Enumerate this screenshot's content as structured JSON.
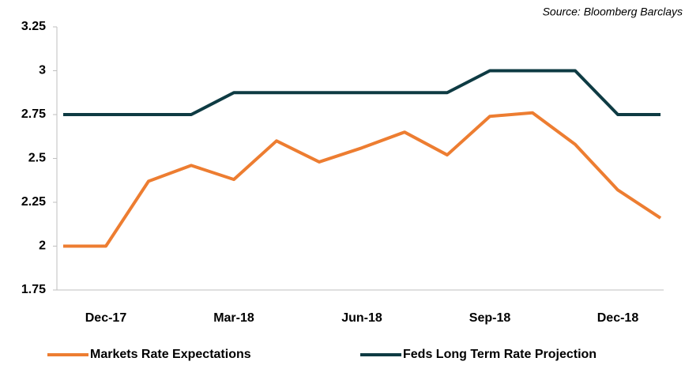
{
  "chart_data": {
    "type": "line",
    "source": "Source: Bloomberg Barclays",
    "categories": [
      null,
      "Dec-17",
      null,
      null,
      "Mar-18",
      null,
      null,
      "Jun-18",
      null,
      null,
      "Sep-18",
      null,
      null,
      "Dec-18",
      null
    ],
    "series": [
      {
        "name": "Markets Rate Expectations",
        "color": "#ed7d31",
        "values": [
          2.0,
          2.0,
          2.37,
          2.46,
          2.38,
          2.6,
          2.48,
          2.56,
          2.65,
          2.52,
          2.74,
          2.76,
          2.58,
          2.32,
          2.16
        ]
      },
      {
        "name": "Feds Long Term Rate Projection",
        "color": "#0e3b43",
        "values": [
          2.75,
          2.75,
          2.75,
          2.75,
          2.875,
          2.875,
          2.875,
          2.875,
          2.875,
          2.875,
          3,
          3,
          3,
          2.75,
          2.75
        ]
      }
    ],
    "ylim": [
      1.75,
      3.25
    ],
    "yticks": [
      1.75,
      2,
      2.25,
      2.5,
      2.75,
      3,
      3.25
    ],
    "grid": false
  }
}
